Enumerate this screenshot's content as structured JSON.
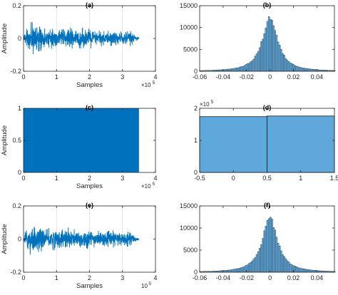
{
  "figure": {
    "colors": {
      "signal": "#0072BD",
      "hist_fill": "#5FA8DC",
      "hist_edge": "#1a1a1a",
      "axis": "#262626",
      "grid": "#dcdcdc"
    }
  },
  "chart_data": [
    {
      "id": "a",
      "type": "line",
      "title": "(a)",
      "xlabel": "Samples",
      "ylabel": "Amplitude",
      "xlim": [
        0,
        400000
      ],
      "ylim": [
        -0.2,
        0.2
      ],
      "x_ticks": [
        "0",
        "1",
        "2",
        "3",
        "4"
      ],
      "y_ticks": [
        "-0.2",
        "0",
        "0.2"
      ],
      "x_exponent": "5",
      "x_exponent_base": "×10",
      "grid": "vertical",
      "series": [
        {
          "x_end": 350000,
          "envelope": [
            [
              0,
              0.02
            ],
            [
              12000,
              0.07
            ],
            [
              25000,
              0.09
            ],
            [
              40000,
              0.07
            ],
            [
              55000,
              0.065
            ],
            [
              70000,
              0.05
            ],
            [
              85000,
              0.07
            ],
            [
              100000,
              0.05
            ],
            [
              115000,
              0.06
            ],
            [
              130000,
              0.065
            ],
            [
              145000,
              0.055
            ],
            [
              160000,
              0.05
            ],
            [
              175000,
              0.06
            ],
            [
              190000,
              0.05
            ],
            [
              205000,
              0.055
            ],
            [
              220000,
              0.04
            ],
            [
              235000,
              0.045
            ],
            [
              250000,
              0.035
            ],
            [
              265000,
              0.05
            ],
            [
              280000,
              0.04
            ],
            [
              295000,
              0.045
            ],
            [
              310000,
              0.04
            ],
            [
              325000,
              0.04
            ],
            [
              338000,
              0.02
            ],
            [
              350000,
              0.005
            ]
          ]
        }
      ]
    },
    {
      "id": "b",
      "type": "bar",
      "title": "(b)",
      "xlim": [
        -0.06,
        0.055
      ],
      "ylim": [
        0,
        15000
      ],
      "x_ticks": [
        "-0.06",
        "-0.04",
        "-0.02",
        "0",
        "0.02",
        "0.04"
      ],
      "y_ticks": [
        "0",
        "5000",
        "10000",
        "15000"
      ],
      "distribution": {
        "peak": 12500,
        "center": 0,
        "scale": 0.0075,
        "bin_range": [
          -0.06,
          0.055
        ],
        "bin_width": 0.0013
      }
    },
    {
      "id": "c",
      "type": "area",
      "title": "(c)",
      "xlabel": "Samples",
      "ylabel": "Amplitude",
      "xlim": [
        0,
        400000
      ],
      "ylim": [
        0,
        1
      ],
      "x_ticks": [
        "0",
        "1",
        "2",
        "3",
        "4"
      ],
      "y_ticks": [
        "0",
        "0.5",
        "1"
      ],
      "x_exponent": "5",
      "x_exponent_base": "×10",
      "series": [
        {
          "x": [
            0,
            350000
          ],
          "y": [
            1,
            1
          ]
        }
      ]
    },
    {
      "id": "d",
      "type": "bar",
      "title": "(d)",
      "xlim": [
        -0.5,
        1.5
      ],
      "ylim": [
        0,
        200000
      ],
      "x_ticks": [
        "-0.5",
        "0",
        "0.5",
        "1",
        "1.5"
      ],
      "y_ticks": [
        "0",
        "1",
        "2"
      ],
      "y_exponent": "5",
      "y_exponent_base": "×10",
      "bins": [
        {
          "x0": -0.5,
          "x1": 0.5,
          "value": 174000
        },
        {
          "x0": 0.5,
          "x1": 1.5,
          "value": 176000
        }
      ]
    },
    {
      "id": "e",
      "type": "line",
      "title": "(e)",
      "xlabel": "Samples",
      "ylabel": "Amplitude",
      "xlim": [
        0,
        400000
      ],
      "ylim": [
        -0.2,
        0.2
      ],
      "x_ticks": [
        "0",
        "1",
        "2",
        "3",
        "4"
      ],
      "y_ticks": [
        "-0.2",
        "0",
        "0.2"
      ],
      "x_exponent": "5",
      "x_exponent_base": "10",
      "grid": "vertical",
      "series": [
        {
          "x_end": 350000,
          "envelope": [
            [
              0,
              0.02
            ],
            [
              12000,
              0.07
            ],
            [
              25000,
              0.09
            ],
            [
              40000,
              0.07
            ],
            [
              55000,
              0.065
            ],
            [
              70000,
              0.05
            ],
            [
              85000,
              0.07
            ],
            [
              100000,
              0.05
            ],
            [
              115000,
              0.06
            ],
            [
              130000,
              0.065
            ],
            [
              145000,
              0.055
            ],
            [
              160000,
              0.05
            ],
            [
              175000,
              0.06
            ],
            [
              190000,
              0.05
            ],
            [
              205000,
              0.055
            ],
            [
              220000,
              0.04
            ],
            [
              235000,
              0.045
            ],
            [
              250000,
              0.035
            ],
            [
              265000,
              0.05
            ],
            [
              280000,
              0.04
            ],
            [
              295000,
              0.045
            ],
            [
              310000,
              0.04
            ],
            [
              325000,
              0.04
            ],
            [
              338000,
              0.02
            ],
            [
              350000,
              0.005
            ]
          ]
        }
      ]
    },
    {
      "id": "f",
      "type": "bar",
      "title": "(f)",
      "xlim": [
        -0.06,
        0.055
      ],
      "ylim": [
        0,
        15000
      ],
      "x_ticks": [
        "-0.06",
        "-0.04",
        "-0.02",
        "0",
        "0.02",
        "0.04"
      ],
      "y_ticks": [
        "0",
        "5000",
        "10000",
        "15000"
      ],
      "distribution": {
        "peak": 12500,
        "center": 0,
        "scale": 0.0075,
        "bin_range": [
          -0.06,
          0.055
        ],
        "bin_width": 0.0013
      }
    }
  ]
}
